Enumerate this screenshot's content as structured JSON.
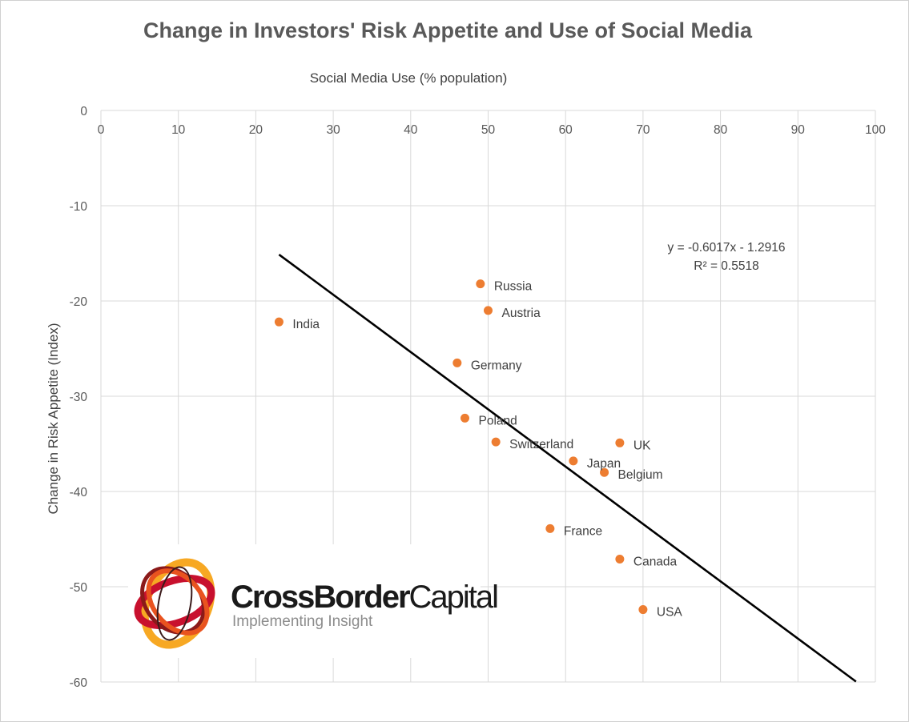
{
  "chart_data": {
    "type": "scatter",
    "title": "Change in Investors' Risk Appetite and Use of Social Media",
    "xlabel": "Social Media Use (% population)",
    "ylabel": "Change in Risk Appetite (Index)",
    "xlim": [
      0,
      100
    ],
    "ylim": [
      -60,
      0
    ],
    "xticks": [
      0,
      10,
      20,
      30,
      40,
      50,
      60,
      70,
      80,
      90,
      100
    ],
    "yticks": [
      0,
      -10,
      -20,
      -30,
      -40,
      -50,
      -60
    ],
    "x_axis_position": "top",
    "grid": true,
    "points": [
      {
        "label": "Russia",
        "x": 49,
        "y": -18.2
      },
      {
        "label": "Austria",
        "x": 50,
        "y": -21.0
      },
      {
        "label": "India",
        "x": 23,
        "y": -22.2
      },
      {
        "label": "Germany",
        "x": 46,
        "y": -26.5
      },
      {
        "label": "Poland",
        "x": 47,
        "y": -32.3
      },
      {
        "label": "Switzerland",
        "x": 51,
        "y": -34.8
      },
      {
        "label": "UK",
        "x": 67,
        "y": -34.9
      },
      {
        "label": "Japan",
        "x": 61,
        "y": -36.8
      },
      {
        "label": "Belgium",
        "x": 65,
        "y": -38.0
      },
      {
        "label": "France",
        "x": 58,
        "y": -43.9
      },
      {
        "label": "Canada",
        "x": 67,
        "y": -47.1
      },
      {
        "label": "USA",
        "x": 70,
        "y": -52.4
      }
    ],
    "trendline": {
      "slope": -0.6017,
      "intercept": -1.2916,
      "x_range": [
        23,
        97.5
      ],
      "equation": "y = -0.6017x - 1.2916",
      "r_squared": "R² = 0.5518"
    },
    "colors": {
      "point": "#ed7d31",
      "trendline": "#000000",
      "grid": "#d9d9d9"
    }
  },
  "logo": {
    "name_bold": "CrossBorder",
    "name_light": "Capital",
    "tagline": "Implementing Insight"
  }
}
